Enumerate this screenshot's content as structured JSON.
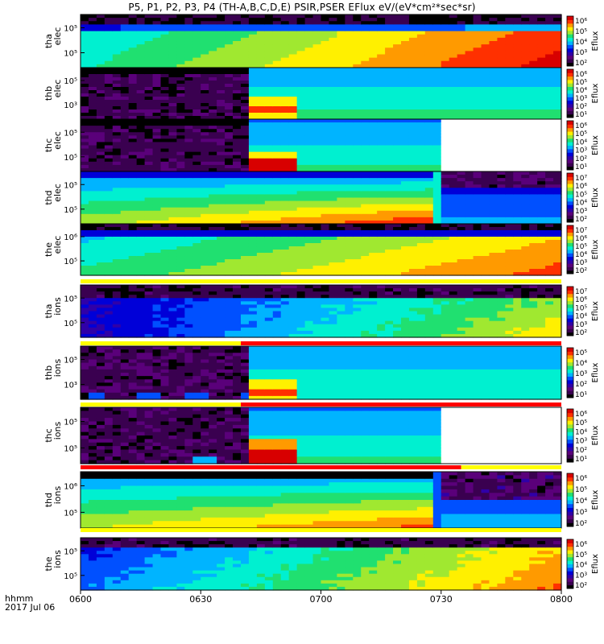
{
  "title": "P5, P1, P2, P3, P4 (TH-A,B,C,D,E) PSIR,PSER EFlux eV/(eV*cm²*sec*sr)",
  "footer": {
    "time_format": "hhmm",
    "date": "2017 Jul 06"
  },
  "colorbar_label": "Eflux",
  "colors": {
    "spectrum": [
      "#000000",
      "#3a0050",
      "#5a007a",
      "#3000a8",
      "#0000d8",
      "#0050ff",
      "#00b4ff",
      "#00f0d0",
      "#20e070",
      "#a0e830",
      "#fff000",
      "#ff9a00",
      "#ff3000",
      "#d80000"
    ],
    "flag_yellow": "#ffff00",
    "flag_red": "#ff0000",
    "no_data": "#ffffff"
  },
  "chart_data": {
    "type": "heatmap",
    "x_axis": {
      "ticks": [
        "0600",
        "0630",
        "0700",
        "0730",
        "0800"
      ],
      "range": [
        "0600",
        "0800"
      ]
    },
    "panels": [
      {
        "id": "tha_elec",
        "ylabel": [
          "tha",
          "elec"
        ],
        "yticks": [
          "10⁵",
          "10⁵"
        ],
        "cbar_ticks": [
          "10⁶",
          "10⁵",
          "10⁴",
          "10³",
          "10²"
        ],
        "flag": null,
        "description_level": 0.6
      },
      {
        "id": "thb_elec",
        "ylabel": [
          "thb",
          "elec"
        ],
        "yticks": [
          "10⁵",
          "10³"
        ],
        "cbar_ticks": [
          "10⁶",
          "10⁵",
          "10⁴",
          "10³",
          "10²",
          "10¹"
        ],
        "flag": null
      },
      {
        "id": "thc_elec",
        "ylabel": [
          "thc",
          "elec"
        ],
        "yticks": [
          "10⁵",
          "10⁵"
        ],
        "cbar_ticks": [
          "10⁶",
          "10⁵",
          "10⁴",
          "10³",
          "10²",
          "10¹"
        ],
        "flag": null
      },
      {
        "id": "thd_elec",
        "ylabel": [
          "thd",
          "elec"
        ],
        "yticks": [
          "10⁵",
          "10⁵"
        ],
        "cbar_ticks": [
          "10⁷",
          "10⁶",
          "10⁵",
          "10⁴",
          "10³",
          "10²"
        ],
        "flag": null
      },
      {
        "id": "the_elec",
        "ylabel": [
          "the",
          "elec"
        ],
        "yticks": [
          "10⁶",
          "10⁵"
        ],
        "cbar_ticks": [
          "10⁷",
          "10⁶",
          "10⁵",
          "10⁴",
          "10³",
          "10²"
        ],
        "flag": {
          "segments": [
            {
              "from": "0600",
              "to": "0800",
              "color": "yellow"
            }
          ]
        }
      },
      {
        "id": "tha_ions",
        "ylabel": [
          "tha",
          "ions"
        ],
        "yticks": [
          "10⁵",
          "10⁵"
        ],
        "cbar_ticks": [
          "10⁷",
          "10⁶",
          "10⁵",
          "10⁴",
          "10³",
          "10²"
        ],
        "flag": {
          "segments": [
            {
              "from": "0600",
              "to": "0640",
              "color": "yellow"
            },
            {
              "from": "0640",
              "to": "0800",
              "color": "red"
            }
          ]
        }
      },
      {
        "id": "thb_ions",
        "ylabel": [
          "thb",
          "ions"
        ],
        "yticks": [
          "10⁵",
          "10³"
        ],
        "cbar_ticks": [
          "10⁵",
          "10⁴",
          "10³",
          "10²",
          "10¹"
        ],
        "flag": {
          "segments": [
            {
              "from": "0600",
              "to": "0640",
              "color": "yellow"
            },
            {
              "from": "0640",
              "to": "0800",
              "color": "red"
            }
          ]
        }
      },
      {
        "id": "thc_ions",
        "ylabel": [
          "thc",
          "ions"
        ],
        "yticks": [
          "10⁵",
          "10⁵"
        ],
        "cbar_ticks": [
          "10⁶",
          "10⁵",
          "10⁴",
          "10³",
          "10²",
          "10¹"
        ],
        "flag": {
          "segments": [
            {
              "from": "0600",
              "to": "0735",
              "color": "red"
            },
            {
              "from": "0735",
              "to": "0800",
              "color": "yellow"
            }
          ]
        }
      },
      {
        "id": "thd_ions",
        "ylabel": [
          "thd",
          "ions"
        ],
        "yticks": [
          "10⁶",
          "10⁵"
        ],
        "cbar_ticks": [
          "10⁶",
          "10⁵",
          "10⁴",
          "10³",
          "10²"
        ],
        "flag": {
          "segments": [
            {
              "from": "0600",
              "to": "0800",
              "color": "yellow"
            }
          ]
        }
      },
      {
        "id": "the_ions",
        "ylabel": [
          "the",
          "ions"
        ],
        "yticks": [
          "10⁵",
          "10⁵"
        ],
        "cbar_ticks": [
          "10⁶",
          "10⁵",
          "10⁴",
          "10³",
          "10²"
        ],
        "flag": null
      }
    ]
  }
}
